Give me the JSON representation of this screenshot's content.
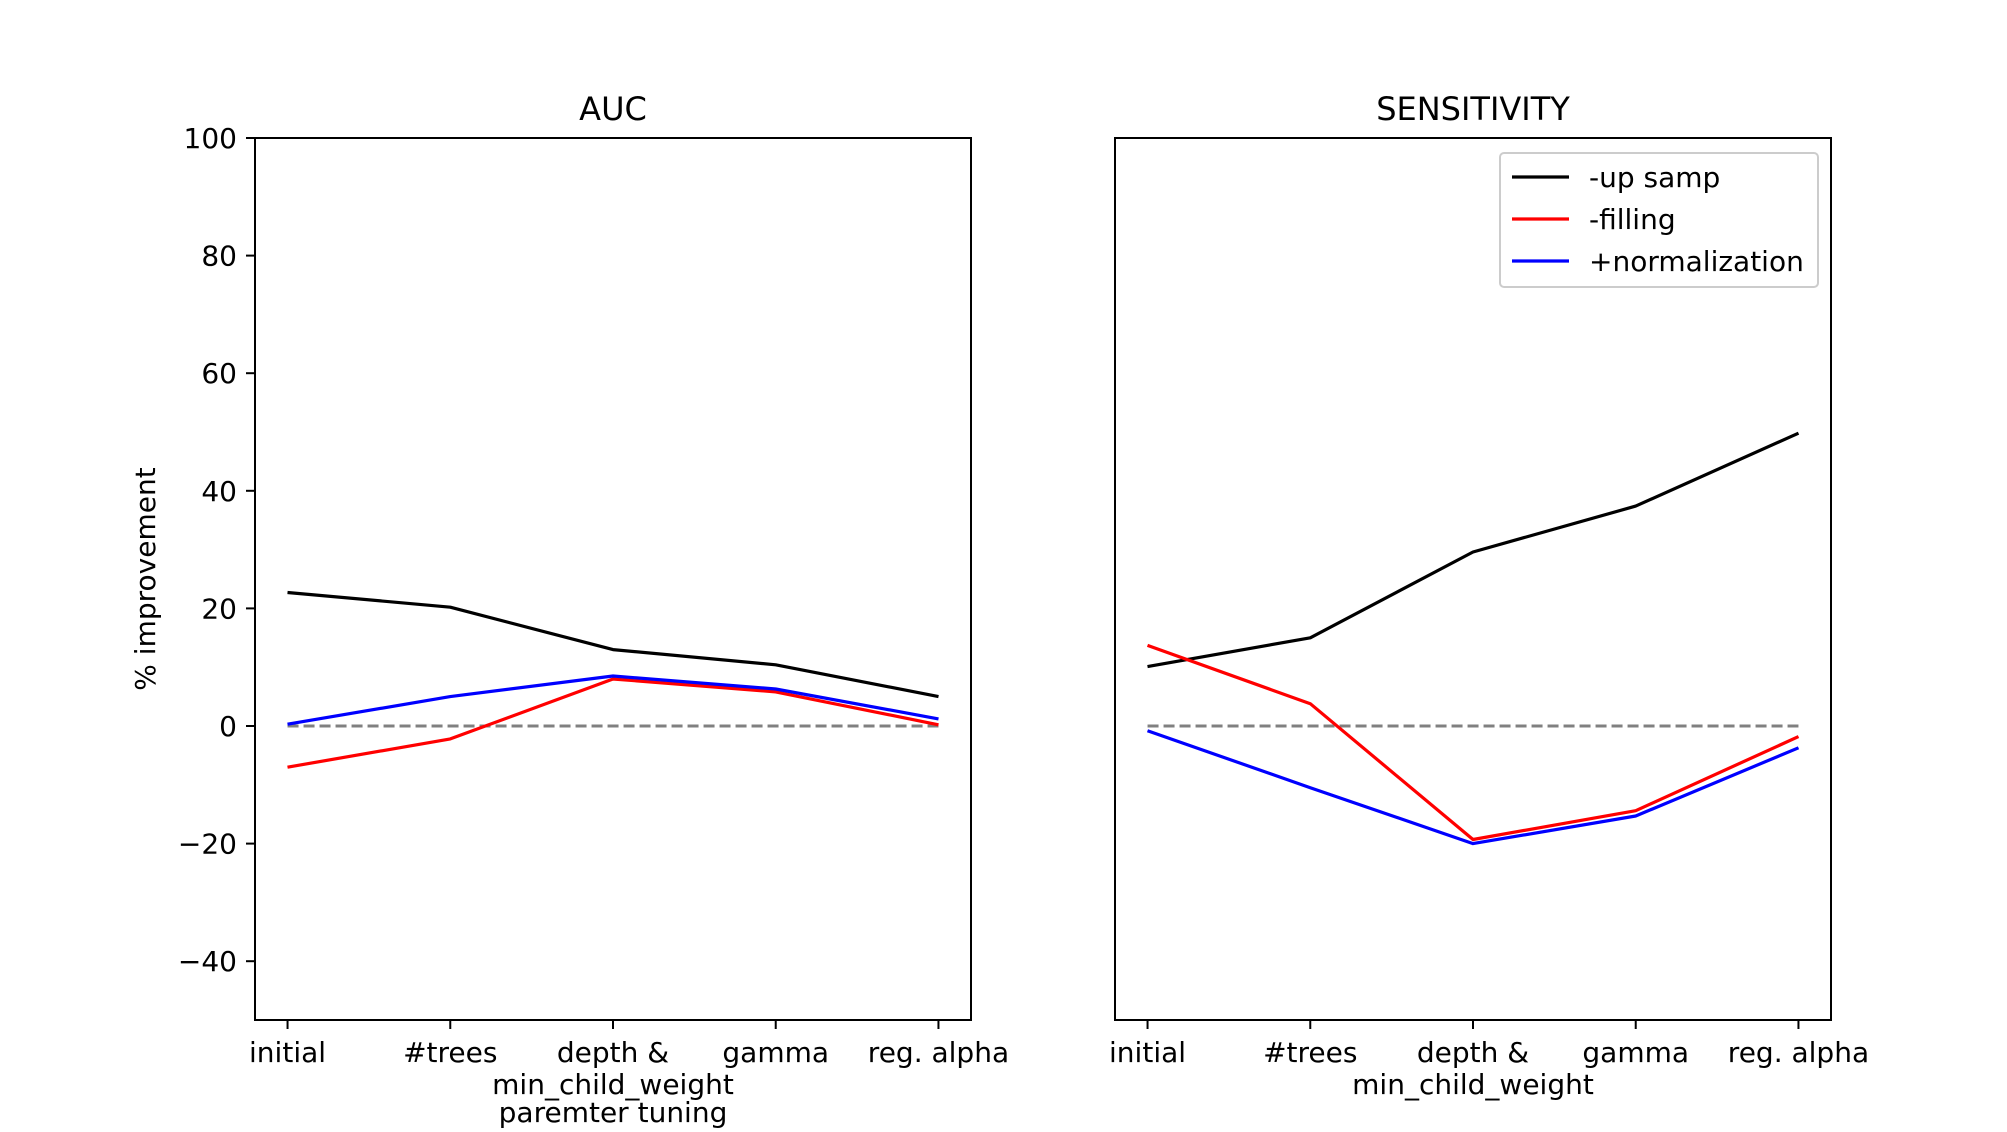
{
  "chart_data": [
    {
      "type": "line",
      "title": "AUC",
      "xlabel": "paremter tuning",
      "ylabel": "% improvement",
      "categories": [
        "initial",
        "#trees",
        "depth &\nmin_child_weight",
        "gamma",
        "reg. alpha"
      ],
      "ylim": [
        -50,
        100
      ],
      "yticks": [
        -40,
        -20,
        0,
        20,
        40,
        60,
        80,
        100
      ],
      "ytick_labels": [
        "−40",
        "−20",
        "0",
        "20",
        "40",
        "60",
        "80",
        "100"
      ],
      "series": [
        {
          "name": "-up samp",
          "color": "#000000",
          "values": [
            22.7,
            20.2,
            13.0,
            10.4,
            5.0
          ]
        },
        {
          "name": "-filling",
          "color": "#ff0000",
          "values": [
            -7.0,
            -2.2,
            8.0,
            5.8,
            0.2
          ]
        },
        {
          "name": "+normalization",
          "color": "#0000ff",
          "values": [
            0.3,
            5.0,
            8.5,
            6.3,
            1.2
          ]
        }
      ],
      "reference_line": {
        "y": 0,
        "color": "#808080",
        "style": "dashed"
      },
      "grid": false,
      "legend": false
    },
    {
      "type": "line",
      "title": "SENSITIVITY",
      "xlabel": "",
      "ylabel": "",
      "categories": [
        "initial",
        "#trees",
        "depth &\nmin_child_weight",
        "gamma",
        "reg. alpha"
      ],
      "ylim": [
        -50,
        100
      ],
      "yticks_visible": false,
      "series": [
        {
          "name": "-up samp",
          "color": "#000000",
          "values": [
            10.1,
            15.0,
            29.6,
            37.4,
            49.8
          ]
        },
        {
          "name": "-filling",
          "color": "#ff0000",
          "values": [
            13.7,
            3.8,
            -19.3,
            -14.4,
            -1.8
          ]
        },
        {
          "name": "+normalization",
          "color": "#0000ff",
          "values": [
            -0.8,
            -10.5,
            -20.0,
            -15.3,
            -3.7
          ]
        }
      ],
      "reference_line": {
        "y": 0,
        "color": "#808080",
        "style": "dashed"
      },
      "grid": false,
      "legend": true,
      "legend_position": "top-right"
    }
  ]
}
